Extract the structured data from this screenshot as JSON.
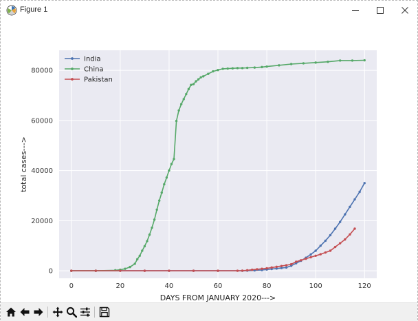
{
  "window": {
    "title": "Figure 1",
    "icon": "matplotlib-icon"
  },
  "toolbar": {
    "buttons": [
      "home-icon",
      "back-arrow-icon",
      "forward-arrow-icon",
      "pan-icon",
      "zoom-icon",
      "subplots-config-icon",
      "save-icon"
    ]
  },
  "chart_data": {
    "type": "line",
    "title": "",
    "xlabel": "DAYS FROM JANUARY 2020--->",
    "ylabel": "total cases--->",
    "xlim": [
      -5,
      125
    ],
    "ylim": [
      -3000,
      88000
    ],
    "xticks": [
      0,
      20,
      40,
      60,
      80,
      100,
      120
    ],
    "yticks": [
      0,
      20000,
      40000,
      60000,
      80000
    ],
    "grid": true,
    "legend_position": "top-left",
    "background": "#eaeaf2",
    "series": [
      {
        "name": "India",
        "color": "#4c72b0",
        "x": [
          0,
          10,
          20,
          30,
          40,
          50,
          60,
          70,
          72,
          75,
          78,
          80,
          82,
          84,
          86,
          88,
          90,
          92,
          94,
          96,
          98,
          100,
          102,
          104,
          106,
          108,
          110,
          112,
          114,
          116,
          118,
          120
        ],
        "y": [
          0,
          0,
          0,
          0,
          0,
          0,
          0,
          0,
          50,
          150,
          300,
          500,
          700,
          900,
          1100,
          1300,
          2000,
          3000,
          4000,
          5200,
          6500,
          8000,
          10000,
          12000,
          14200,
          16800,
          19500,
          22500,
          25500,
          28500,
          31500,
          35000
        ]
      },
      {
        "name": "China",
        "color": "#55a868",
        "x": [
          0,
          10,
          18,
          20,
          22,
          24,
          26,
          27,
          28,
          29,
          30,
          31,
          32,
          33,
          34,
          35,
          36,
          37,
          38,
          39,
          40,
          41,
          42,
          43,
          44,
          45,
          46,
          47,
          48,
          49,
          50,
          51,
          52,
          53,
          54,
          56,
          58,
          60,
          62,
          64,
          66,
          68,
          70,
          72,
          75,
          78,
          80,
          85,
          90,
          95,
          100,
          105,
          110,
          115,
          120
        ],
        "y": [
          0,
          0,
          200,
          400,
          800,
          1500,
          2800,
          4600,
          6000,
          8000,
          9800,
          11800,
          14400,
          17200,
          20400,
          24400,
          28000,
          31200,
          34500,
          37200,
          40000,
          42600,
          44600,
          59800,
          64000,
          66500,
          68500,
          70500,
          72500,
          74200,
          74500,
          75600,
          76400,
          77200,
          77600,
          78600,
          79600,
          80100,
          80600,
          80700,
          80800,
          80900,
          80900,
          81000,
          81100,
          81300,
          81500,
          82000,
          82500,
          82800,
          83100,
          83400,
          83900,
          83900,
          84000
        ]
      },
      {
        "name": "Pakistan",
        "color": "#c44e52",
        "x": [
          0,
          10,
          20,
          30,
          40,
          50,
          60,
          68,
          70,
          72,
          74,
          76,
          78,
          80,
          82,
          84,
          86,
          88,
          90,
          92,
          94,
          96,
          98,
          100,
          102,
          104,
          106,
          108,
          110,
          112,
          114,
          116
        ],
        "y": [
          0,
          0,
          0,
          0,
          0,
          0,
          0,
          0,
          50,
          200,
          400,
          600,
          800,
          1000,
          1300,
          1600,
          1900,
          2200,
          2600,
          3600,
          4200,
          4800,
          5400,
          6000,
          6600,
          7300,
          8000,
          9500,
          11000,
          12500,
          14500,
          16800
        ]
      }
    ]
  }
}
